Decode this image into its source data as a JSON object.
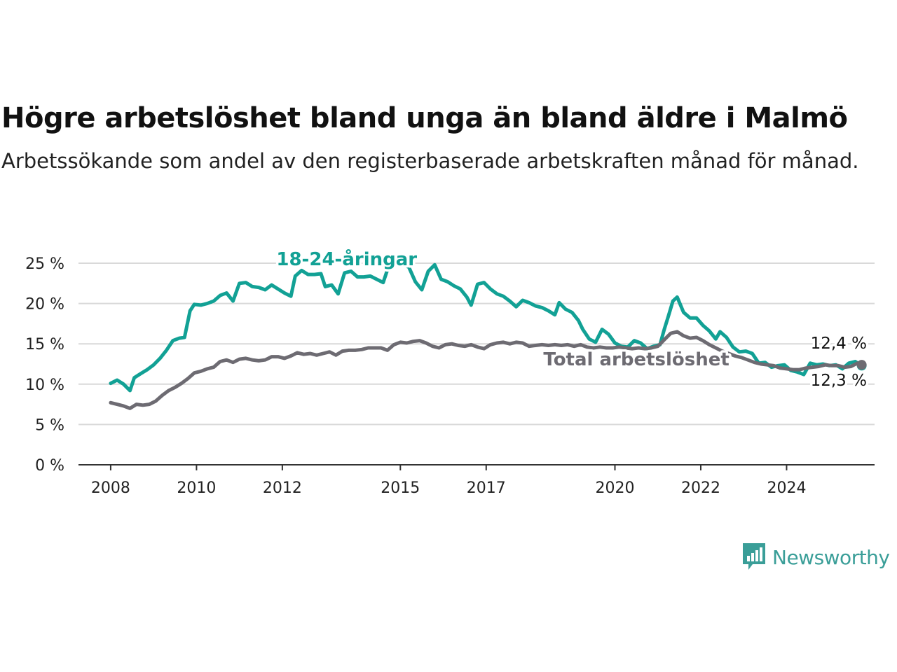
{
  "title": "Högre arbetslöshet bland unga än bland äldre i Malmö",
  "subtitle": "Arbetssökande som andel av den registerbaserade arbetskraften månad för månad.",
  "brand": {
    "name": "Newsworthy",
    "icon": "newsworthy-logo-icon",
    "color": "#3a9e98"
  },
  "chart_data": {
    "type": "line",
    "y_ticks": [
      "0 %",
      "5 %",
      "10 %",
      "15 %",
      "20 %",
      "25 %"
    ],
    "y_tick_values": [
      0,
      5,
      10,
      15,
      20,
      25
    ],
    "x_ticks": [
      "2008",
      "2010",
      "2012",
      "2015",
      "2017",
      "2020",
      "2022",
      "2024"
    ],
    "x_tick_values": [
      2008.0,
      2010.0,
      2012.0,
      2014.75,
      2016.75,
      2019.75,
      2021.75,
      2023.75
    ],
    "ylim": [
      0,
      25
    ],
    "xlim": [
      2007.25,
      2025.8
    ],
    "grid": true,
    "series": [
      {
        "name": "18-24-åringar",
        "color": "#12a195",
        "end_label": "12,3 %",
        "points": [
          [
            2008.0,
            10.1
          ],
          [
            2008.15,
            10.5
          ],
          [
            2008.3,
            10.0
          ],
          [
            2008.45,
            9.2
          ],
          [
            2008.55,
            10.8
          ],
          [
            2008.7,
            11.3
          ],
          [
            2008.85,
            11.8
          ],
          [
            2009.0,
            12.4
          ],
          [
            2009.15,
            13.2
          ],
          [
            2009.3,
            14.2
          ],
          [
            2009.45,
            15.4
          ],
          [
            2009.6,
            15.7
          ],
          [
            2009.72,
            15.8
          ],
          [
            2009.85,
            19.1
          ],
          [
            2009.95,
            19.9
          ],
          [
            2010.1,
            19.8
          ],
          [
            2010.25,
            20.0
          ],
          [
            2010.4,
            20.3
          ],
          [
            2010.55,
            21.0
          ],
          [
            2010.7,
            21.3
          ],
          [
            2010.85,
            20.3
          ],
          [
            2011.0,
            22.5
          ],
          [
            2011.15,
            22.6
          ],
          [
            2011.3,
            22.1
          ],
          [
            2011.45,
            22.0
          ],
          [
            2011.6,
            21.7
          ],
          [
            2011.75,
            22.3
          ],
          [
            2011.9,
            21.8
          ],
          [
            2012.05,
            21.3
          ],
          [
            2012.2,
            20.9
          ],
          [
            2012.3,
            23.4
          ],
          [
            2012.45,
            24.1
          ],
          [
            2012.6,
            23.6
          ],
          [
            2012.75,
            23.6
          ],
          [
            2012.9,
            23.7
          ],
          [
            2013.0,
            22.1
          ],
          [
            2013.15,
            22.3
          ],
          [
            2013.3,
            21.2
          ],
          [
            2013.45,
            23.8
          ],
          [
            2013.6,
            24.0
          ],
          [
            2013.75,
            23.3
          ],
          [
            2013.9,
            23.3
          ],
          [
            2014.05,
            23.4
          ],
          [
            2014.2,
            23.0
          ],
          [
            2014.35,
            22.6
          ],
          [
            2014.5,
            25.0
          ],
          [
            2014.75,
            25.0
          ],
          [
            2014.95,
            24.5
          ],
          [
            2015.1,
            22.7
          ],
          [
            2015.25,
            21.7
          ],
          [
            2015.4,
            24.0
          ],
          [
            2015.55,
            24.8
          ],
          [
            2015.7,
            23.0
          ],
          [
            2015.85,
            22.7
          ],
          [
            2016.0,
            22.2
          ],
          [
            2016.15,
            21.8
          ],
          [
            2016.3,
            20.8
          ],
          [
            2016.4,
            19.8
          ],
          [
            2016.55,
            22.4
          ],
          [
            2016.7,
            22.6
          ],
          [
            2016.85,
            21.8
          ],
          [
            2017.0,
            21.2
          ],
          [
            2017.15,
            20.9
          ],
          [
            2017.3,
            20.3
          ],
          [
            2017.45,
            19.6
          ],
          [
            2017.6,
            20.4
          ],
          [
            2017.75,
            20.1
          ],
          [
            2017.9,
            19.7
          ],
          [
            2018.05,
            19.5
          ],
          [
            2018.2,
            19.1
          ],
          [
            2018.35,
            18.6
          ],
          [
            2018.45,
            20.1
          ],
          [
            2018.6,
            19.3
          ],
          [
            2018.75,
            18.9
          ],
          [
            2018.9,
            17.9
          ],
          [
            2019.0,
            16.8
          ],
          [
            2019.15,
            15.6
          ],
          [
            2019.3,
            15.2
          ],
          [
            2019.45,
            16.8
          ],
          [
            2019.6,
            16.2
          ],
          [
            2019.75,
            15.1
          ],
          [
            2019.9,
            14.7
          ],
          [
            2020.05,
            14.6
          ],
          [
            2020.2,
            15.4
          ],
          [
            2020.35,
            15.1
          ],
          [
            2020.5,
            14.4
          ],
          [
            2020.65,
            14.7
          ],
          [
            2020.8,
            14.9
          ],
          [
            2020.9,
            16.8
          ],
          [
            2021.0,
            18.5
          ],
          [
            2021.1,
            20.3
          ],
          [
            2021.2,
            20.8
          ],
          [
            2021.35,
            18.9
          ],
          [
            2021.5,
            18.2
          ],
          [
            2021.65,
            18.2
          ],
          [
            2021.8,
            17.3
          ],
          [
            2021.95,
            16.6
          ],
          [
            2022.1,
            15.6
          ],
          [
            2022.2,
            16.5
          ],
          [
            2022.35,
            15.8
          ],
          [
            2022.5,
            14.6
          ],
          [
            2022.65,
            14.0
          ],
          [
            2022.8,
            14.1
          ],
          [
            2022.95,
            13.8
          ],
          [
            2023.1,
            12.6
          ],
          [
            2023.25,
            12.7
          ],
          [
            2023.4,
            12.1
          ],
          [
            2023.55,
            12.3
          ],
          [
            2023.7,
            12.4
          ],
          [
            2023.85,
            11.7
          ],
          [
            2024.0,
            11.5
          ],
          [
            2024.15,
            11.2
          ],
          [
            2024.3,
            12.6
          ],
          [
            2024.45,
            12.4
          ],
          [
            2024.6,
            12.5
          ],
          [
            2024.75,
            12.3
          ],
          [
            2024.9,
            12.4
          ],
          [
            2025.05,
            11.9
          ],
          [
            2025.2,
            12.6
          ],
          [
            2025.35,
            12.8
          ],
          [
            2025.5,
            12.3
          ]
        ]
      },
      {
        "name": "Total arbetslöshet",
        "color": "#6d6b72",
        "end_label": "12,4 %",
        "points": [
          [
            2008.0,
            7.7
          ],
          [
            2008.15,
            7.5
          ],
          [
            2008.3,
            7.3
          ],
          [
            2008.45,
            7.0
          ],
          [
            2008.6,
            7.5
          ],
          [
            2008.75,
            7.4
          ],
          [
            2008.9,
            7.5
          ],
          [
            2009.05,
            7.9
          ],
          [
            2009.2,
            8.6
          ],
          [
            2009.35,
            9.2
          ],
          [
            2009.5,
            9.6
          ],
          [
            2009.65,
            10.1
          ],
          [
            2009.8,
            10.7
          ],
          [
            2009.95,
            11.4
          ],
          [
            2010.1,
            11.6
          ],
          [
            2010.25,
            11.9
          ],
          [
            2010.4,
            12.1
          ],
          [
            2010.55,
            12.8
          ],
          [
            2010.7,
            13.0
          ],
          [
            2010.85,
            12.7
          ],
          [
            2011.0,
            13.1
          ],
          [
            2011.15,
            13.2
          ],
          [
            2011.3,
            13.0
          ],
          [
            2011.45,
            12.9
          ],
          [
            2011.6,
            13.0
          ],
          [
            2011.75,
            13.4
          ],
          [
            2011.9,
            13.4
          ],
          [
            2012.05,
            13.2
          ],
          [
            2012.2,
            13.5
          ],
          [
            2012.35,
            13.9
          ],
          [
            2012.5,
            13.7
          ],
          [
            2012.65,
            13.8
          ],
          [
            2012.8,
            13.6
          ],
          [
            2012.95,
            13.8
          ],
          [
            2013.1,
            14.0
          ],
          [
            2013.25,
            13.6
          ],
          [
            2013.4,
            14.1
          ],
          [
            2013.55,
            14.2
          ],
          [
            2013.7,
            14.2
          ],
          [
            2013.85,
            14.3
          ],
          [
            2014.0,
            14.5
          ],
          [
            2014.15,
            14.5
          ],
          [
            2014.3,
            14.5
          ],
          [
            2014.45,
            14.2
          ],
          [
            2014.6,
            14.9
          ],
          [
            2014.75,
            15.2
          ],
          [
            2014.9,
            15.1
          ],
          [
            2015.05,
            15.3
          ],
          [
            2015.2,
            15.4
          ],
          [
            2015.35,
            15.1
          ],
          [
            2015.5,
            14.7
          ],
          [
            2015.65,
            14.5
          ],
          [
            2015.8,
            14.9
          ],
          [
            2015.95,
            15.0
          ],
          [
            2016.1,
            14.8
          ],
          [
            2016.25,
            14.7
          ],
          [
            2016.4,
            14.9
          ],
          [
            2016.55,
            14.6
          ],
          [
            2016.7,
            14.4
          ],
          [
            2016.85,
            14.9
          ],
          [
            2017.0,
            15.1
          ],
          [
            2017.15,
            15.2
          ],
          [
            2017.3,
            15.0
          ],
          [
            2017.45,
            15.2
          ],
          [
            2017.6,
            15.1
          ],
          [
            2017.75,
            14.7
          ],
          [
            2017.9,
            14.8
          ],
          [
            2018.05,
            14.9
          ],
          [
            2018.2,
            14.8
          ],
          [
            2018.35,
            14.9
          ],
          [
            2018.5,
            14.8
          ],
          [
            2018.65,
            14.9
          ],
          [
            2018.8,
            14.7
          ],
          [
            2018.95,
            14.9
          ],
          [
            2019.1,
            14.6
          ],
          [
            2019.25,
            14.5
          ],
          [
            2019.4,
            14.6
          ],
          [
            2019.55,
            14.5
          ],
          [
            2019.7,
            14.5
          ],
          [
            2019.85,
            14.6
          ],
          [
            2020.0,
            14.5
          ],
          [
            2020.15,
            14.4
          ],
          [
            2020.3,
            14.5
          ],
          [
            2020.45,
            14.4
          ],
          [
            2020.6,
            14.5
          ],
          [
            2020.75,
            14.7
          ],
          [
            2020.9,
            15.5
          ],
          [
            2021.05,
            16.3
          ],
          [
            2021.2,
            16.5
          ],
          [
            2021.35,
            16.0
          ],
          [
            2021.5,
            15.7
          ],
          [
            2021.65,
            15.8
          ],
          [
            2021.8,
            15.4
          ],
          [
            2021.95,
            14.9
          ],
          [
            2022.1,
            14.5
          ],
          [
            2022.25,
            14.1
          ],
          [
            2022.4,
            13.8
          ],
          [
            2022.55,
            13.5
          ],
          [
            2022.7,
            13.3
          ],
          [
            2022.85,
            13.0
          ],
          [
            2023.0,
            12.7
          ],
          [
            2023.15,
            12.5
          ],
          [
            2023.3,
            12.4
          ],
          [
            2023.45,
            12.3
          ],
          [
            2023.6,
            12.0
          ],
          [
            2023.75,
            11.9
          ],
          [
            2023.9,
            11.8
          ],
          [
            2024.05,
            11.8
          ],
          [
            2024.2,
            12.0
          ],
          [
            2024.35,
            12.1
          ],
          [
            2024.5,
            12.2
          ],
          [
            2024.65,
            12.4
          ],
          [
            2024.8,
            12.3
          ],
          [
            2024.95,
            12.3
          ],
          [
            2025.1,
            12.1
          ],
          [
            2025.25,
            12.2
          ],
          [
            2025.4,
            12.6
          ],
          [
            2025.5,
            12.4
          ]
        ]
      }
    ]
  }
}
